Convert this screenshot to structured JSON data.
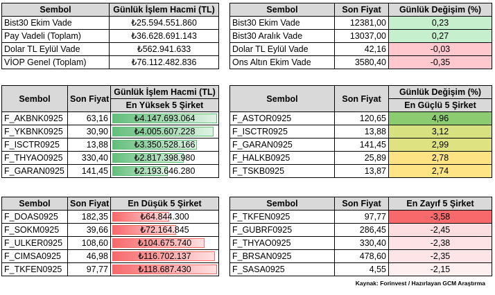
{
  "summary_left": {
    "headers": [
      "Sembol",
      "Günlük İşlem Hacmi (TL)"
    ],
    "rows": [
      [
        "Bist30 Ekim Vade",
        "₺25.594.551.860"
      ],
      [
        "Pay Vadeli (Toplam)",
        "₺36.628.691.143"
      ],
      [
        "Dolar TL Eylül Vade",
        "₺562.941.633"
      ],
      [
        "VİOP Genel (Toplam)",
        "₺76.112.482.836"
      ]
    ]
  },
  "summary_right": {
    "headers": [
      "Sembol",
      "Son Fiyat",
      "Günlük Değişim (%)"
    ],
    "rows": [
      {
        "symbol": "Bist30 Ekim Vade",
        "price": "12381,00",
        "change": "0,23",
        "color": "#c6efce"
      },
      {
        "symbol": "Bist30 Aralık Vade",
        "price": "13037,00",
        "change": "0,27",
        "color": "#c6efce"
      },
      {
        "symbol": "Dolar TL Eylül Vade",
        "price": "42,16",
        "change": "-0,03",
        "color": "#ffc7ce"
      },
      {
        "symbol": "Ons Altın Ekim Vade",
        "price": "3580,40",
        "change": "-0,35",
        "color": "#ffc7ce"
      }
    ]
  },
  "top_volume": {
    "headers": [
      "Sembol",
      "Son Fiyat",
      "Günlük İşlem Hacmi (TL)"
    ],
    "subheader": "En Yüksek 5 Şirket",
    "bar_color": "#63be7b",
    "rows": [
      {
        "symbol": "F_AKBNK0925",
        "price": "63,16",
        "volume": "₺4.147.693.064",
        "level": 1.0
      },
      {
        "symbol": "F_YKBNK0925",
        "price": "30,90",
        "volume": "₺4.005.607.228",
        "level": 0.965
      },
      {
        "symbol": "F_ISCTR0925",
        "price": "13,88",
        "volume": "₺3.350.528.166",
        "level": 0.808
      },
      {
        "symbol": "F_THYAO0925",
        "price": "330,40",
        "volume": "₺2.817.398.980",
        "level": 0.679
      },
      {
        "symbol": "F_GARAN0925",
        "price": "141,45",
        "volume": "₺2.193.646.280",
        "level": 0.529
      }
    ]
  },
  "top_gainers": {
    "headers": [
      "Sembol",
      "Son Fiyat",
      "Günlük Değişim (%)"
    ],
    "subheader": "En Güçlü 5 Şirket",
    "rows": [
      {
        "symbol": "F_ASTOR0925",
        "price": "120,65",
        "change": "4,96",
        "color": "#8ccb70"
      },
      {
        "symbol": "F_ISCTR0925",
        "price": "13,88",
        "change": "3,12",
        "color": "#d7e17f"
      },
      {
        "symbol": "F_GARAN0925",
        "price": "141,45",
        "change": "2,99",
        "color": "#dfe281"
      },
      {
        "symbol": "F_HALKB0925",
        "price": "25,89",
        "change": "2,78",
        "color": "#fde384"
      },
      {
        "symbol": "F_TSKB0925",
        "price": "13,87",
        "change": "2,74",
        "color": "#fee485"
      }
    ]
  },
  "low_volume": {
    "headers": [
      "Sembol",
      "Son Fiyat",
      "En Düşük 5 Şirket"
    ],
    "bar_color": "#f8696b",
    "rows": [
      {
        "symbol": "F_DOAS0925",
        "price": "182,35",
        "volume": "₺64.844.300",
        "level": 0.546
      },
      {
        "symbol": "F_SOKM0925",
        "price": "39,66",
        "volume": "₺72.164.845",
        "level": 0.608
      },
      {
        "symbol": "F_ULKER0925",
        "price": "108,60",
        "volume": "₺104.675.740",
        "level": 0.882
      },
      {
        "symbol": "F_CIMSA0925",
        "price": "46,98",
        "volume": "₺116.702.137",
        "level": 0.983
      },
      {
        "symbol": "F_TKFEN0925",
        "price": "97,77",
        "volume": "₺118.687.430",
        "level": 1.0
      }
    ]
  },
  "top_losers": {
    "headers": [
      "Sembol",
      "Son Fiyat",
      "En Zayıf 5 Şirket"
    ],
    "rows": [
      {
        "symbol": "F_TKFEN0925",
        "price": "97,77",
        "change": "-3,58",
        "color": "#f8696b"
      },
      {
        "symbol": "F_GUBRF0925",
        "price": "286,45",
        "change": "-2,45",
        "color": "#fcdde0"
      },
      {
        "symbol": "F_THYAO0925",
        "price": "330,40",
        "change": "-2,38",
        "color": "#fde3e5"
      },
      {
        "symbol": "F_BRSAN0925",
        "price": "478,60",
        "change": "-2,35",
        "color": "#fde5e7"
      },
      {
        "symbol": "F_SASA0925",
        "price": "4,55",
        "change": "-2,15",
        "color": "#fef0f1"
      }
    ]
  },
  "source": "Kaynak: Forinvest / Hazırlayan GCM Araştırma"
}
